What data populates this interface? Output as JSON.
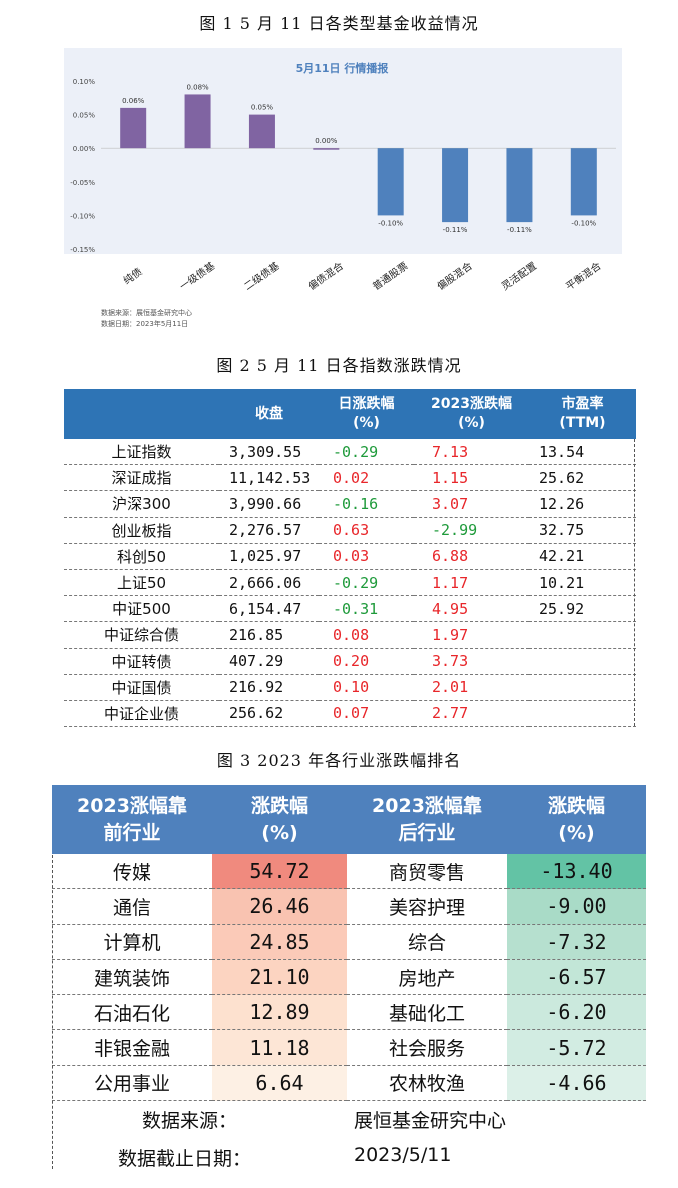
{
  "fig1": {
    "caption": "图 1   5 月 11 日各类型基金收益情况",
    "source_line": "数据来源：展恒基金研究中心",
    "date_line": "数据日期：2023年5月11日"
  },
  "chart_data": [
    {
      "type": "bar",
      "title": "5月11日  行情播报",
      "categories": [
        "纯债",
        "一级债基",
        "二级债基",
        "偏债混合",
        "普通股票",
        "偏股混合",
        "灵活配置",
        "平衡混合"
      ],
      "values": [
        0.06,
        0.08,
        0.05,
        0.0,
        -0.1,
        -0.11,
        -0.11,
        -0.1
      ],
      "data_labels": [
        "0.06%",
        "0.08%",
        "0.05%",
        "0.00%",
        "-0.10%",
        "-0.11%",
        "-0.11%",
        "-0.10%"
      ],
      "yticks": [
        "0.10%",
        "0.05%",
        "0.00%",
        "-0.05%",
        "-0.10%",
        "-0.15%"
      ],
      "ylim": [
        -0.15,
        0.1
      ],
      "grid": false,
      "colors": {
        "positive": "#8064a2",
        "negative": "#4f81bd",
        "title": "#4f81bd"
      }
    }
  ],
  "fig2": {
    "caption": "图 2   5 月 11 日各指数涨跌情况",
    "headers": [
      "",
      "收盘",
      "日涨跌幅\n(%)",
      "2023涨跌幅\n(%)",
      "市盈率\n(TTM)"
    ],
    "rows": [
      {
        "name": "上证指数",
        "close": "3,309.55",
        "day": "-0.29",
        "ytd": "7.13",
        "pe": "13.54"
      },
      {
        "name": "深证成指",
        "close": "11,142.53",
        "day": "0.02",
        "ytd": "1.15",
        "pe": "25.62"
      },
      {
        "name": "沪深300",
        "close": "3,990.66",
        "day": "-0.16",
        "ytd": "3.07",
        "pe": "12.26"
      },
      {
        "name": "创业板指",
        "close": "2,276.57",
        "day": "0.63",
        "ytd": "-2.99",
        "pe": "32.75"
      },
      {
        "name": "科创50",
        "close": "1,025.97",
        "day": "0.03",
        "ytd": "6.88",
        "pe": "42.21"
      },
      {
        "name": "上证50",
        "close": "2,666.06",
        "day": "-0.29",
        "ytd": "1.17",
        "pe": "10.21"
      },
      {
        "name": "中证500",
        "close": "6,154.47",
        "day": "-0.31",
        "ytd": "4.95",
        "pe": "25.92"
      },
      {
        "name": "中证综合债",
        "close": "216.85",
        "day": "0.08",
        "ytd": "1.97",
        "pe": ""
      },
      {
        "name": "中证转债",
        "close": "407.29",
        "day": "0.20",
        "ytd": "3.73",
        "pe": ""
      },
      {
        "name": "中证国债",
        "close": "216.92",
        "day": "0.10",
        "ytd": "2.01",
        "pe": ""
      },
      {
        "name": "中证企业债",
        "close": "256.62",
        "day": "0.07",
        "ytd": "2.77",
        "pe": ""
      }
    ],
    "colors": {
      "header": "#2e74b5",
      "up": "#e8262a",
      "down": "#1e9a3a"
    }
  },
  "fig3": {
    "caption": "图 3   2023 年各行业涨跌幅排名",
    "headers": [
      "2023涨幅靠\n前行业",
      "涨跌幅\n(%)",
      "2023涨幅靠\n后行业",
      "涨跌幅\n(%)"
    ],
    "rows": [
      {
        "top": "传媒",
        "top_pct": "54.72",
        "bottom": "商贸零售",
        "bottom_pct": "-13.40"
      },
      {
        "top": "通信",
        "top_pct": "26.46",
        "bottom": "美容护理",
        "bottom_pct": "-9.00"
      },
      {
        "top": "计算机",
        "top_pct": "24.85",
        "bottom": "综合",
        "bottom_pct": "-7.32"
      },
      {
        "top": "建筑装饰",
        "top_pct": "21.10",
        "bottom": "房地产",
        "bottom_pct": "-6.57"
      },
      {
        "top": "石油石化",
        "top_pct": "12.89",
        "bottom": "基础化工",
        "bottom_pct": "-6.20"
      },
      {
        "top": "非银金融",
        "top_pct": "11.18",
        "bottom": "社会服务",
        "bottom_pct": "-5.72"
      },
      {
        "top": "公用事业",
        "top_pct": "6.64",
        "bottom": "农林牧渔",
        "bottom_pct": "-4.66"
      }
    ],
    "top_colors": [
      "#f08a7e",
      "#f9c3b1",
      "#fbcab8",
      "#fcd4c1",
      "#fde1cf",
      "#fde6d6",
      "#fdf0e4"
    ],
    "bottom_colors": [
      "#63c3a5",
      "#a9dbc7",
      "#b6e0cf",
      "#c2e6d7",
      "#cbe9dd",
      "#d2ece2",
      "#dcf0e8"
    ],
    "header_color": "#4f81bd",
    "footer": {
      "source_label": "数据来源：",
      "source_value": "展恒基金研究中心",
      "date_label": "数据截止日期：",
      "date_value": "2023/5/11"
    }
  }
}
